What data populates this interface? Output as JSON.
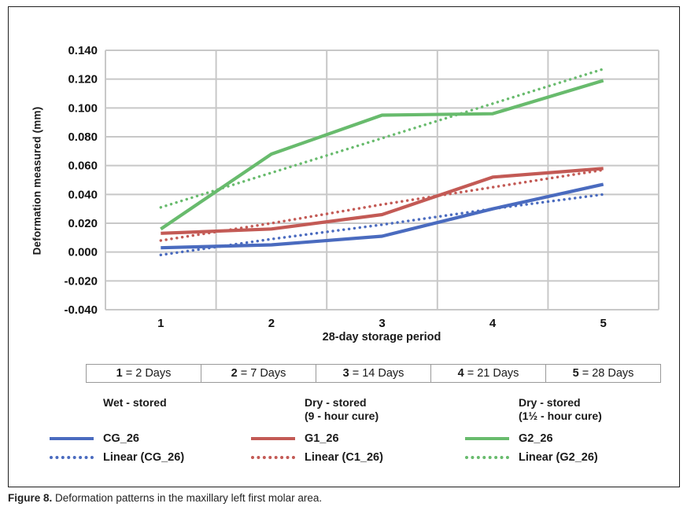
{
  "colors": {
    "blue": "#4a6bbf",
    "red": "#c35a55",
    "green": "#68bb6d",
    "grid": "#c8c8c8"
  },
  "chart_data": {
    "type": "line",
    "categories": [
      "1",
      "2",
      "3",
      "4",
      "5"
    ],
    "xlabel": "28-day storage period",
    "ylabel": "Deformation measured (mm)",
    "ylim": [
      -0.04,
      0.14
    ],
    "ytick_step": 0.02,
    "ytick_decimals": 3,
    "grid": true,
    "legend_position": "bottom",
    "series": [
      {
        "name": "CG_26",
        "style": "solid",
        "color": "#4a6bbf",
        "values": [
          0.003,
          0.005,
          0.011,
          0.03,
          0.047
        ]
      },
      {
        "name": "Linear (CG_26)",
        "style": "dotted",
        "color": "#4a6bbf",
        "values": [
          -0.002,
          0.009,
          0.019,
          0.03,
          0.04
        ]
      },
      {
        "name": "G1_26",
        "style": "solid",
        "color": "#c35a55",
        "values": [
          0.013,
          0.016,
          0.026,
          0.052,
          0.058
        ]
      },
      {
        "name": "Linear (C1_26)",
        "style": "dotted",
        "color": "#c35a55",
        "values": [
          0.008,
          0.02,
          0.033,
          0.045,
          0.057
        ]
      },
      {
        "name": "G2_26",
        "style": "solid",
        "color": "#68bb6d",
        "values": [
          0.016,
          0.068,
          0.095,
          0.096,
          0.119
        ]
      },
      {
        "name": "Linear (G2_26)",
        "style": "dotted",
        "color": "#68bb6d",
        "values": [
          0.031,
          0.055,
          0.079,
          0.103,
          0.127
        ]
      }
    ]
  },
  "period_table": {
    "cells": [
      {
        "num": "1",
        "days": "2 Days"
      },
      {
        "num": "2",
        "days": "7 Days"
      },
      {
        "num": "3",
        "days": "14 Days"
      },
      {
        "num": "4",
        "days": "21 Days"
      },
      {
        "num": "5",
        "days": "28 Days"
      }
    ]
  },
  "legend": {
    "groups": [
      {
        "header_lines": [
          "Wet - stored"
        ],
        "items": [
          {
            "label": "CG_26",
            "style": "solid",
            "color": "#4a6bbf"
          },
          {
            "label": "Linear (CG_26)",
            "style": "dotted",
            "color": "#4a6bbf"
          }
        ]
      },
      {
        "header_lines": [
          "Dry - stored",
          "(9 - hour cure)"
        ],
        "items": [
          {
            "label": "G1_26",
            "style": "solid",
            "color": "#c35a55"
          },
          {
            "label": "Linear (C1_26)",
            "style": "dotted",
            "color": "#c35a55"
          }
        ]
      },
      {
        "header_lines": [
          "Dry - stored",
          "(1½ - hour cure)"
        ],
        "items": [
          {
            "label": "G2_26",
            "style": "solid",
            "color": "#68bb6d"
          },
          {
            "label": "Linear (G2_26)",
            "style": "dotted",
            "color": "#68bb6d"
          }
        ]
      }
    ]
  },
  "caption": {
    "label": "Figure 8.",
    "text": "Deformation patterns in the maxillary left first molar area."
  }
}
